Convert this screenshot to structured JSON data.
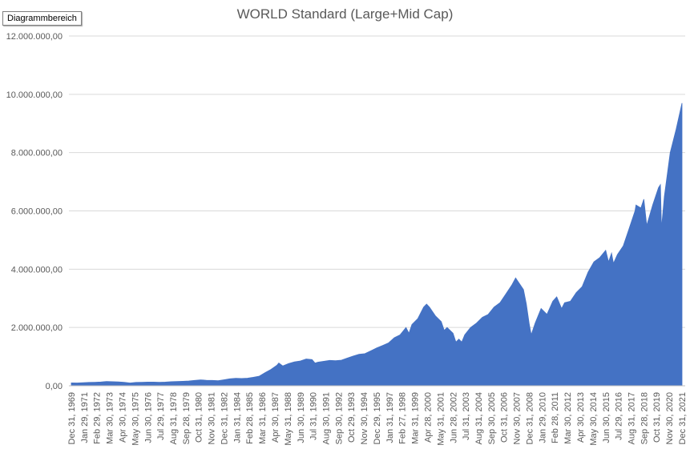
{
  "chart_area_label": "Diagrammbereich",
  "chart_data": {
    "type": "area",
    "title": "WORLD Standard (Large+Mid Cap)",
    "xlabel": "",
    "ylabel": "",
    "ylim": [
      0,
      12000000
    ],
    "grid": true,
    "legend": "none",
    "color": "#4472C4",
    "y_ticks": [
      "0,00",
      "2.000.000,00",
      "4.000.000,00",
      "6.000.000,00",
      "8.000.000,00",
      "10.000.000,00",
      "12.000.000,00"
    ],
    "x_tick_labels": [
      "Dec 31, 1969",
      "Jan 29, 1971",
      "Feb 29, 1972",
      "Mar 30, 1973",
      "Apr 30, 1974",
      "May 30, 1975",
      "Jun 30, 1976",
      "Jul 29, 1977",
      "Aug 31, 1978",
      "Sep 28, 1979",
      "Oct 31, 1980",
      "Nov 30, 1981",
      "Dec 31, 1982",
      "Jan 31, 1984",
      "Feb 28, 1985",
      "Mar 31, 1986",
      "Apr 30, 1987",
      "May 31, 1988",
      "Jun 30, 1989",
      "Jul 31, 1990",
      "Aug 30, 1991",
      "Sep 30, 1992",
      "Oct 29, 1993",
      "Nov 30, 1994",
      "Dec 29, 1995",
      "Jan 31, 1997",
      "Feb 27, 1998",
      "Mar 31, 1999",
      "Apr 28, 2000",
      "May 31, 2001",
      "Jun 28, 2002",
      "Jul 31, 2003",
      "Aug 31, 2004",
      "Sep 30, 2005",
      "Oct 31, 2006",
      "Nov 30, 2007",
      "Dec 31, 2008",
      "Jan 29, 2010",
      "Feb 28, 2011",
      "Mar 30, 2012",
      "Apr 30, 2013",
      "May 30, 2014",
      "Jun 30, 2015",
      "Jul 29, 2016",
      "Aug 31, 2017",
      "Sep 28, 2018",
      "Oct 31, 2019",
      "Nov 30, 2020",
      "Dec 31, 2021"
    ],
    "series": [
      {
        "x": [
          "1969-12",
          "1970-06",
          "1970-12",
          "1971-06",
          "1971-12",
          "1972-06",
          "1972-12",
          "1973-06",
          "1973-12",
          "1974-06",
          "1974-12",
          "1975-06",
          "1975-12",
          "1976-06",
          "1976-12",
          "1977-06",
          "1977-12",
          "1978-06",
          "1978-12",
          "1979-06",
          "1979-12",
          "1980-06",
          "1980-12",
          "1981-06",
          "1981-12",
          "1982-06",
          "1982-12",
          "1983-06",
          "1983-12",
          "1984-06",
          "1984-12",
          "1985-06",
          "1985-12",
          "1986-06",
          "1986-12",
          "1987-06",
          "1987-08",
          "1987-12",
          "1988-06",
          "1988-12",
          "1989-06",
          "1989-12",
          "1990-06",
          "1990-09",
          "1990-12",
          "1991-06",
          "1991-12",
          "1992-06",
          "1992-12",
          "1993-06",
          "1993-12",
          "1994-06",
          "1994-12",
          "1995-06",
          "1995-12",
          "1996-06",
          "1996-12",
          "1997-06",
          "1997-12",
          "1998-06",
          "1998-09",
          "1998-12",
          "1999-06",
          "1999-12",
          "2000-03",
          "2000-06",
          "2000-12",
          "2001-06",
          "2001-09",
          "2001-12",
          "2002-06",
          "2002-09",
          "2002-12",
          "2003-03",
          "2003-06",
          "2003-12",
          "2004-06",
          "2004-12",
          "2005-06",
          "2005-12",
          "2006-06",
          "2006-12",
          "2007-06",
          "2007-10",
          "2007-12",
          "2008-06",
          "2008-09",
          "2008-12",
          "2009-02",
          "2009-06",
          "2009-12",
          "2010-06",
          "2010-12",
          "2011-04",
          "2011-09",
          "2011-12",
          "2012-06",
          "2012-12",
          "2013-06",
          "2013-12",
          "2014-06",
          "2014-12",
          "2015-06",
          "2015-09",
          "2015-12",
          "2016-02",
          "2016-06",
          "2016-12",
          "2017-06",
          "2017-12",
          "2018-01",
          "2018-06",
          "2018-09",
          "2018-12",
          "2019-06",
          "2019-12",
          "2020-02",
          "2020-03",
          "2020-06",
          "2020-12",
          "2021-06",
          "2021-12"
        ],
        "values": [
          100000,
          95000,
          105000,
          115000,
          120000,
          130000,
          145000,
          140000,
          135000,
          120000,
          95000,
          115000,
          120000,
          125000,
          125000,
          122000,
          125000,
          140000,
          145000,
          155000,
          165000,
          185000,
          200000,
          190000,
          185000,
          175000,
          205000,
          240000,
          255000,
          250000,
          260000,
          290000,
          330000,
          450000,
          560000,
          700000,
          780000,
          680000,
          760000,
          820000,
          850000,
          920000,
          900000,
          780000,
          810000,
          840000,
          870000,
          860000,
          880000,
          950000,
          1020000,
          1080000,
          1100000,
          1200000,
          1300000,
          1380000,
          1470000,
          1650000,
          1750000,
          2000000,
          1800000,
          2100000,
          2300000,
          2700000,
          2800000,
          2700000,
          2400000,
          2200000,
          1900000,
          2000000,
          1800000,
          1500000,
          1600000,
          1500000,
          1750000,
          2000000,
          2150000,
          2350000,
          2450000,
          2700000,
          2850000,
          3150000,
          3450000,
          3700000,
          3600000,
          3300000,
          2800000,
          2100000,
          1750000,
          2150000,
          2650000,
          2450000,
          2900000,
          3050000,
          2650000,
          2850000,
          2900000,
          3200000,
          3400000,
          3900000,
          4250000,
          4400000,
          4650000,
          4250000,
          4550000,
          4200000,
          4500000,
          4800000,
          5400000,
          6000000,
          6200000,
          6100000,
          6400000,
          5500000,
          6200000,
          6800000,
          6900000,
          5400000,
          6500000,
          8000000,
          8800000,
          9700000
        ]
      }
    ]
  }
}
